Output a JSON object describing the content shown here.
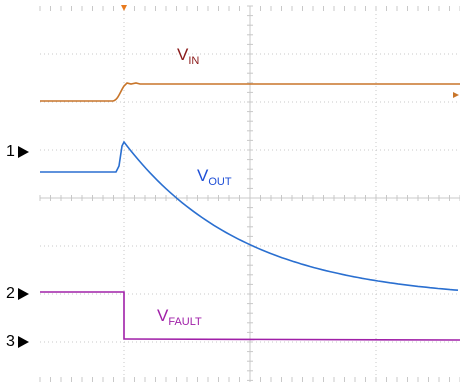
{
  "channel_markers": [
    {
      "num": "1"
    },
    {
      "num": "2"
    },
    {
      "num": "3"
    }
  ],
  "labels": {
    "vin": {
      "main": "V",
      "sub": "IN"
    },
    "vout": {
      "main": "V",
      "sub": "OUT"
    },
    "vfault": {
      "main": "V",
      "sub": "FAULT"
    }
  },
  "colors": {
    "vin": "#c8752a",
    "vout": "#2a6fd0",
    "vfault": "#a020a8",
    "label_vin": "#8b1a1a",
    "label_vout": "#1f4fd6",
    "label_vfault": "#a020a8",
    "grid": "#c8c8c8",
    "trigger": "#e87a1e"
  },
  "icons": {
    "trigger": "trigger-marker-icon",
    "channel": "channel-arrow-icon"
  }
}
